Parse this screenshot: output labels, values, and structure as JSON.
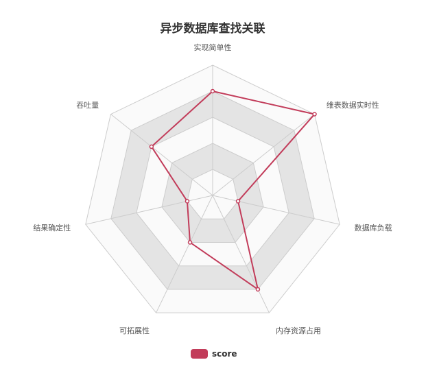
{
  "chart_data": {
    "type": "radar",
    "title": "异步数据库查找关联",
    "indicators": [
      "实现简单性",
      "维表数据实时性",
      "数据库负载",
      "内存资源占用",
      "可拓展性",
      "结果确定性",
      "吞吐量"
    ],
    "max": 5,
    "levels": 5,
    "series": [
      {
        "name": "score",
        "values": [
          4,
          5,
          1,
          4,
          2,
          1,
          3
        ]
      }
    ],
    "colors": {
      "series": "#c23c5a",
      "grid_line": "#cccccc",
      "band_fill": "#e4e4e4",
      "band_fill_alt": "#fafafa"
    },
    "legend_position": "bottom-center"
  }
}
